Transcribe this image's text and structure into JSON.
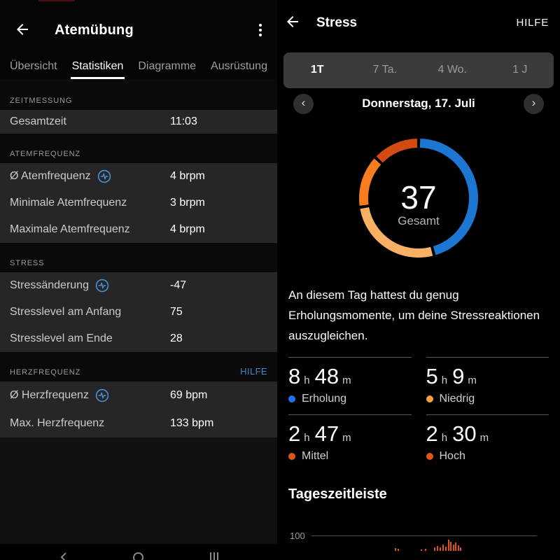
{
  "left_panel": {
    "title": "Atemübung",
    "tabs": [
      {
        "label": "Übersicht",
        "active": false
      },
      {
        "label": "Statistiken",
        "active": true
      },
      {
        "label": "Diagramme",
        "active": false
      },
      {
        "label": "Ausrüstung",
        "active": false
      }
    ],
    "sections": [
      {
        "title": "ZEITMESSUNG",
        "rows": [
          {
            "label": "Gesamtzeit",
            "value": "11:03"
          }
        ]
      },
      {
        "title": "ATEMFREQUENZ",
        "rows": [
          {
            "label": "Ø Atemfrequenz",
            "value": "4 brpm",
            "has_info_icon": true
          },
          {
            "label": "Minimale Atemfrequenz",
            "value": "3 brpm"
          },
          {
            "label": "Maximale Atemfrequenz",
            "value": "4 brpm"
          }
        ]
      },
      {
        "title": "STRESS",
        "rows": [
          {
            "label": "Stressänderung",
            "value": "-47",
            "has_info_icon": true
          },
          {
            "label": "Stresslevel am Anfang",
            "value": "75"
          },
          {
            "label": "Stresslevel am Ende",
            "value": "28"
          }
        ]
      },
      {
        "title": "HERZFREQUENZ",
        "help_link": "HILFE",
        "rows": [
          {
            "label": "Ø Herzfrequenz",
            "value": "69 bpm",
            "has_info_icon": true
          },
          {
            "label": "Max. Herzfrequenz",
            "value": "133 bpm"
          }
        ]
      }
    ],
    "android_nav_icons": [
      "back-icon",
      "home-icon",
      "recents-icon"
    ]
  },
  "right_panel": {
    "title": "Stress",
    "help_link": "HILFE",
    "range_tabs": [
      {
        "label": "1T",
        "active": true
      },
      {
        "label": "7 Ta.",
        "active": false
      },
      {
        "label": "4 Wo.",
        "active": false
      },
      {
        "label": "1 J",
        "active": false
      }
    ],
    "date_label": "Donnerstag, 17. Juli",
    "summary_text": "An diesem Tag hattest du genug Erholungsmomente, um deine Stressreaktionen auszugleichen.",
    "hour_unit": "h",
    "minute_unit": "m",
    "stats": [
      {
        "hours": "8",
        "minutes": "48",
        "label": "Erholung",
        "dot_color": "#1a73e8"
      },
      {
        "hours": "5",
        "minutes": "9",
        "label": "Niedrig",
        "dot_color": "#f2a143"
      },
      {
        "hours": "2",
        "minutes": "47",
        "label": "Mittel",
        "dot_color": "#e05617"
      },
      {
        "hours": "2",
        "minutes": "30",
        "label": "Hoch",
        "dot_color": "#e05617"
      }
    ],
    "timeline_title": "Tageszeitleiste"
  },
  "accent_colors": {
    "link_blue": "#3f87ce",
    "info_icon_blue": "#4a90d9"
  },
  "chart_data": [
    {
      "type": "pie",
      "variant": "donut",
      "center_value": "37",
      "center_label": "Gesamt",
      "categories": [
        "Erholung",
        "Niedrig",
        "Mittel",
        "Hoch"
      ],
      "values": [
        528,
        309,
        167,
        150
      ],
      "unit": "minutes",
      "display_labels": [
        "8 h 48 m",
        "5 h 9 m",
        "2 h 47 m",
        "2 h 30 m"
      ],
      "colors": [
        "#1d76d2",
        "#f8b064",
        "#f57d1f",
        "#d14b12"
      ],
      "start_angle_deg": 0,
      "clockwise": true,
      "segment_gap_deg": 3
    },
    {
      "type": "bar",
      "title": "Tageszeitleiste",
      "ytick": "100",
      "ylim": [
        0,
        100
      ],
      "grid": true,
      "note": "intraday stress bars, chart cut off at bottom edge of screenshot",
      "bar_color": "#d65417",
      "bars": [
        {
          "x": 168,
          "h": 4
        },
        {
          "x": 172,
          "h": 3
        },
        {
          "x": 205,
          "h": 2
        },
        {
          "x": 211,
          "h": 3
        },
        {
          "x": 224,
          "h": 5
        },
        {
          "x": 228,
          "h": 7
        },
        {
          "x": 232,
          "h": 5
        },
        {
          "x": 236,
          "h": 9
        },
        {
          "x": 240,
          "h": 6
        },
        {
          "x": 244,
          "h": 16
        },
        {
          "x": 247,
          "h": 13
        },
        {
          "x": 251,
          "h": 9
        },
        {
          "x": 254,
          "h": 12
        },
        {
          "x": 258,
          "h": 8
        },
        {
          "x": 261,
          "h": 5
        }
      ]
    }
  ]
}
